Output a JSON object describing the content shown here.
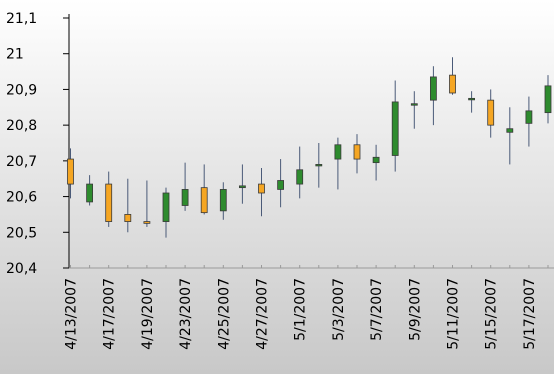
{
  "chart_data": {
    "type": "candlestick",
    "title": "",
    "xlabel": "",
    "ylabel": "",
    "ylim": [
      20.4,
      21.1
    ],
    "yticks": [
      "20,4",
      "20,5",
      "20,6",
      "20,7",
      "20,8",
      "20,9",
      "21",
      "21,1"
    ],
    "grid": false,
    "legend": "none",
    "xticks": [
      "4/13/2007",
      "4/17/2007",
      "4/19/2007",
      "4/23/2007",
      "4/25/2007",
      "4/27/2007",
      "5/1/2007",
      "5/3/2007",
      "5/7/2007",
      "5/9/2007",
      "5/11/2007",
      "5/15/2007",
      "5/17/2007"
    ],
    "colors": {
      "up": "#2e8b2e",
      "down": "#f5a623",
      "wick": "#4a5a78",
      "axis": "#000000",
      "background_top": "#ffffff",
      "background_bottom": "#c8c8c8"
    },
    "candles": [
      {
        "open": 20.705,
        "high": 20.735,
        "low": 20.595,
        "close": 20.635
      },
      {
        "open": 20.585,
        "high": 20.66,
        "low": 20.575,
        "close": 20.635
      },
      {
        "open": 20.635,
        "high": 20.67,
        "low": 20.515,
        "close": 20.53
      },
      {
        "open": 20.55,
        "high": 20.65,
        "low": 20.5,
        "close": 20.53
      },
      {
        "open": 20.53,
        "high": 20.645,
        "low": 20.515,
        "close": 20.525
      },
      {
        "open": 20.53,
        "high": 20.625,
        "low": 20.485,
        "close": 20.61
      },
      {
        "open": 20.575,
        "high": 20.695,
        "low": 20.56,
        "close": 20.62
      },
      {
        "open": 20.625,
        "high": 20.69,
        "low": 20.55,
        "close": 20.555
      },
      {
        "open": 20.56,
        "high": 20.64,
        "low": 20.535,
        "close": 20.62
      },
      {
        "open": 20.625,
        "high": 20.69,
        "low": 20.58,
        "close": 20.63
      },
      {
        "open": 20.635,
        "high": 20.68,
        "low": 20.545,
        "close": 20.61
      },
      {
        "open": 20.62,
        "high": 20.705,
        "low": 20.57,
        "close": 20.645
      },
      {
        "open": 20.635,
        "high": 20.74,
        "low": 20.595,
        "close": 20.675
      },
      {
        "open": 20.69,
        "high": 20.75,
        "low": 20.625,
        "close": 20.69
      },
      {
        "open": 20.705,
        "high": 20.765,
        "low": 20.62,
        "close": 20.745
      },
      {
        "open": 20.745,
        "high": 20.775,
        "low": 20.665,
        "close": 20.705
      },
      {
        "open": 20.695,
        "high": 20.745,
        "low": 20.645,
        "close": 20.71
      },
      {
        "open": 20.715,
        "high": 20.925,
        "low": 20.67,
        "close": 20.865
      },
      {
        "open": 20.86,
        "high": 20.895,
        "low": 20.79,
        "close": 20.86
      },
      {
        "open": 20.87,
        "high": 20.965,
        "low": 20.8,
        "close": 20.935
      },
      {
        "open": 20.94,
        "high": 20.99,
        "low": 20.885,
        "close": 20.89
      },
      {
        "open": 20.875,
        "high": 20.895,
        "low": 20.835,
        "close": 20.875
      },
      {
        "open": 20.87,
        "high": 20.9,
        "low": 20.765,
        "close": 20.8
      },
      {
        "open": 20.78,
        "high": 20.85,
        "low": 20.69,
        "close": 20.79
      },
      {
        "open": 20.805,
        "high": 20.88,
        "low": 20.74,
        "close": 20.84
      },
      {
        "open": 20.835,
        "high": 20.94,
        "low": 20.805,
        "close": 20.91
      }
    ]
  }
}
